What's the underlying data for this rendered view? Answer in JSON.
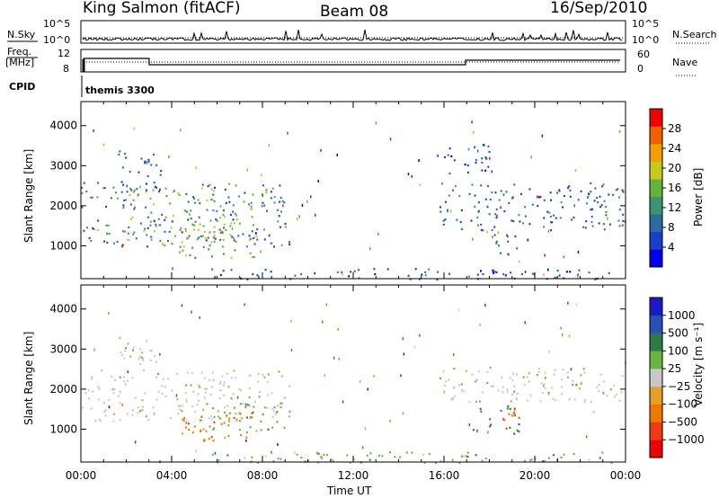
{
  "header": {
    "station": "King Salmon (fitACF)",
    "beam": "Beam 08",
    "date": "16/Sep/2010"
  },
  "top_panels": {
    "nsky_label": "N.Sky",
    "nsky_ticks": [
      "10^5",
      "10^0"
    ],
    "nsearch_label": "N.Search",
    "nsearch_ticks": [
      "10^5",
      "10^0"
    ],
    "freq_label_line1": "Freq.",
    "freq_label_line2": "[MHz]",
    "freq_ticks": [
      "12",
      "8"
    ],
    "nave_label": "Nave",
    "nave_ticks": [
      "60",
      "0"
    ],
    "cpid_label": "CPID",
    "cpid_value": "themis 3300"
  },
  "chart_data": [
    {
      "type": "heatmap",
      "name": "power",
      "ylabel": "Slant Range [km]",
      "ylim": [
        180,
        4600
      ],
      "yticks": [
        1000,
        2000,
        3000,
        4000
      ],
      "colorbar_label": "Power [dB]",
      "colorbar_ticks": [
        "28",
        "24",
        "20",
        "16",
        "12",
        "8",
        "4"
      ],
      "colorbar_range": [
        0,
        30
      ],
      "colors": [
        "#0000f0",
        "#1a3ec8",
        "#2a6aa0",
        "#3c9474",
        "#5fb53a",
        "#c8c81e",
        "#f0a000",
        "#f06000",
        "#f00000"
      ],
      "regions": [
        {
          "t": [
            0.0,
            9.2
          ],
          "r": [
            1000,
            2600
          ],
          "mean": 11,
          "peak": 20
        },
        {
          "t": [
            1.6,
            3.5
          ],
          "r": [
            2300,
            3400
          ],
          "mean": 7,
          "peak": 10
        },
        {
          "t": [
            4.3,
            7.8
          ],
          "r": [
            700,
            1450
          ],
          "mean": 14,
          "peak": 22
        },
        {
          "t": [
            2.0,
            7.0
          ],
          "r": [
            1150,
            1750
          ],
          "mean": 16,
          "peak": 24
        },
        {
          "t": [
            5.5,
            23.5
          ],
          "r": [
            180,
            450
          ],
          "mean": 6,
          "peak": 12
        },
        {
          "t": [
            15.8,
            24.0
          ],
          "r": [
            1400,
            2600
          ],
          "mean": 8,
          "peak": 13
        },
        {
          "t": [
            18.0,
            19.2
          ],
          "r": [
            700,
            1400
          ],
          "mean": 8,
          "peak": 11
        },
        {
          "t": [
            16.0,
            18.0
          ],
          "r": [
            2800,
            3600
          ],
          "mean": 5,
          "peak": 8
        }
      ]
    },
    {
      "type": "heatmap",
      "name": "velocity",
      "ylabel": "Slant Range [km]",
      "xlabel": "Time UT",
      "ylim": [
        180,
        4600
      ],
      "yticks": [
        1000,
        2000,
        3000,
        4000
      ],
      "xticks": [
        "00:00",
        "04:00",
        "08:00",
        "12:00",
        "16:00",
        "20:00",
        "00:00"
      ],
      "xlim_hours": [
        0,
        24
      ],
      "colorbar_label": "Velocity [m s⁻¹]",
      "colorbar_ticks": [
        "1000",
        "500",
        "100",
        "25",
        "−25",
        "−100",
        "−500",
        "−1000"
      ],
      "colors": [
        "#1a1ac8",
        "#2a50b4",
        "#2e7a46",
        "#6ab43c",
        "#c8c8c8",
        "#e6a028",
        "#f07800",
        "#f03a14",
        "#f00000"
      ],
      "regions": [
        {
          "t": [
            0.0,
            9.2
          ],
          "r": [
            1200,
            2500
          ],
          "class": 4
        },
        {
          "t": [
            1.6,
            3.5
          ],
          "r": [
            2400,
            3400
          ],
          "class": 4
        },
        {
          "t": [
            4.3,
            7.8
          ],
          "r": [
            700,
            1450
          ],
          "class": 6
        },
        {
          "t": [
            5.5,
            9.0
          ],
          "r": [
            1000,
            1700
          ],
          "class": 3
        },
        {
          "t": [
            5.5,
            23.5
          ],
          "r": [
            180,
            450
          ],
          "class": 3
        },
        {
          "t": [
            15.8,
            24.0
          ],
          "r": [
            1700,
            2600
          ],
          "class": 4
        },
        {
          "t": [
            17.2,
            19.3
          ],
          "r": [
            900,
            1600
          ],
          "class": 2
        },
        {
          "t": [
            18.6,
            19.4
          ],
          "r": [
            1000,
            1600
          ],
          "class": 6
        }
      ]
    }
  ]
}
